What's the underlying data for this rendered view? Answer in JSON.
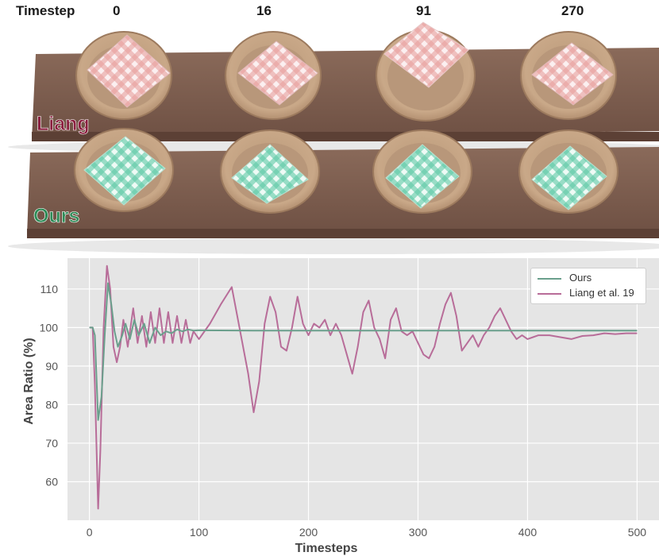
{
  "header": {
    "corner_label": "Timestep",
    "timesteps": [
      "0",
      "16",
      "91",
      "270"
    ]
  },
  "scene": {
    "rows": [
      {
        "label": "Liang",
        "color": "#8b1f3f",
        "cloth_color": "#e8908f"
      },
      {
        "label": "Ours",
        "color": "#2e8b57",
        "cloth_color": "#5dcaa5"
      }
    ]
  },
  "chart_data": {
    "type": "line",
    "xlabel": "Timesteps",
    "ylabel": "Area Ratio (%)",
    "xlim": [
      -20,
      520
    ],
    "ylim": [
      50,
      118
    ],
    "xticks": [
      0,
      100,
      200,
      300,
      400,
      500
    ],
    "yticks": [
      60,
      70,
      80,
      90,
      100,
      110
    ],
    "grid": true,
    "legend_position": "top-right",
    "series": [
      {
        "name": "Ours",
        "color": "#6a9f8c",
        "x": [
          0,
          3,
          5,
          8,
          11,
          14,
          17,
          20,
          23,
          26,
          30,
          33,
          37,
          41,
          45,
          50,
          55,
          60,
          65,
          70,
          75,
          80,
          85,
          90,
          95,
          100,
          150,
          200,
          300,
          400,
          500
        ],
        "y": [
          100,
          100,
          98,
          76,
          82,
          98,
          111.5,
          106,
          99,
          95,
          98,
          101,
          97,
          102,
          98,
          101,
          96,
          100,
          98,
          99,
          98.5,
          99.5,
          99,
          99.5,
          99.2,
          99.3,
          99.2,
          99.2,
          99.2,
          99.2,
          99.2
        ]
      },
      {
        "name": "Liang et al. 19",
        "color": "#b86d99",
        "x": [
          0,
          3,
          5,
          8,
          10,
          13,
          16,
          19,
          22,
          25,
          28,
          31,
          35,
          40,
          44,
          48,
          52,
          56,
          60,
          64,
          68,
          72,
          76,
          80,
          84,
          88,
          92,
          95,
          100,
          110,
          120,
          130,
          137,
          145,
          150,
          155,
          160,
          165,
          170,
          175,
          180,
          185,
          190,
          195,
          200,
          205,
          210,
          215,
          220,
          225,
          230,
          235,
          240,
          245,
          250,
          255,
          260,
          265,
          270,
          275,
          280,
          285,
          290,
          295,
          300,
          305,
          310,
          315,
          320,
          325,
          330,
          335,
          340,
          345,
          350,
          355,
          360,
          365,
          370,
          375,
          380,
          385,
          390,
          395,
          400,
          405,
          410,
          420,
          430,
          440,
          450,
          460,
          470,
          480,
          490,
          500
        ],
        "y": [
          100,
          100,
          85,
          53,
          68,
          100,
          116,
          110,
          95,
          91,
          95,
          102,
          95,
          105,
          96,
          103,
          95,
          104,
          96,
          105,
          96,
          104,
          96,
          103,
          96,
          102,
          96,
          99,
          97,
          101,
          106,
          110.5,
          100,
          88,
          78,
          86,
          101,
          108,
          104,
          95,
          94,
          100,
          108,
          101,
          98,
          101,
          100,
          102,
          98,
          101,
          98,
          93,
          88,
          95,
          104,
          107,
          100,
          97,
          92,
          102,
          105,
          99,
          98,
          99,
          96,
          93,
          92,
          95,
          101,
          106,
          109,
          103,
          94,
          96,
          98,
          95,
          98,
          100,
          103,
          105,
          102,
          99,
          97,
          98,
          97,
          97.5,
          98,
          98,
          97.5,
          97,
          97.8,
          98,
          98.5,
          98.3,
          98.5,
          98.5
        ]
      }
    ]
  }
}
